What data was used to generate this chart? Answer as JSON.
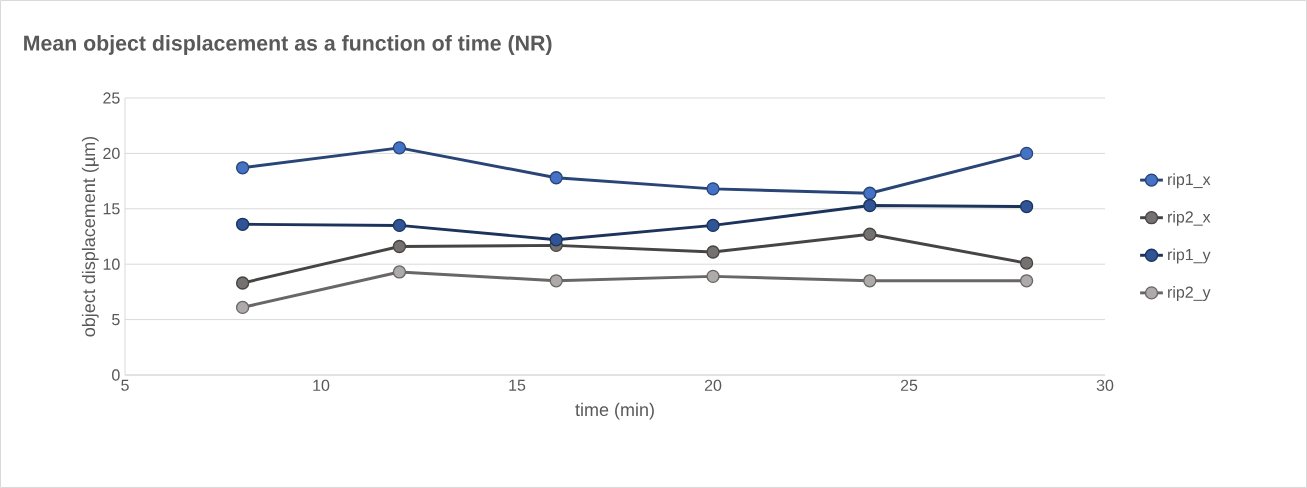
{
  "chart_data": {
    "type": "line",
    "title": "Mean object displacement as a function of time (NR)",
    "xlabel": "time (min)",
    "ylabel": "object displacement (µm)",
    "x": [
      8,
      12,
      16,
      20,
      24,
      28
    ],
    "series": [
      {
        "name": "rip1_x",
        "color": "#4472c4",
        "values": [
          18.7,
          20.5,
          17.8,
          16.8,
          16.4,
          20.0
        ]
      },
      {
        "name": "rip2_x",
        "color": "#767171",
        "values": [
          8.3,
          11.6,
          11.7,
          11.1,
          12.7,
          10.1
        ]
      },
      {
        "name": "rip1_y",
        "color": "#2f5597",
        "values": [
          13.6,
          13.5,
          12.2,
          13.5,
          15.3,
          15.2
        ]
      },
      {
        "name": "rip2_y",
        "color": "#aeaaaa",
        "values": [
          6.1,
          9.3,
          8.5,
          8.9,
          8.5,
          8.5
        ]
      }
    ],
    "xlim": [
      5,
      30
    ],
    "xticks": [
      5,
      10,
      15,
      20,
      25,
      30
    ],
    "ylim": [
      0,
      25
    ],
    "yticks": [
      0,
      5,
      10,
      15,
      20,
      25
    ],
    "grid": "y",
    "legend": "right",
    "marker": "circle",
    "line_style": "solid"
  }
}
